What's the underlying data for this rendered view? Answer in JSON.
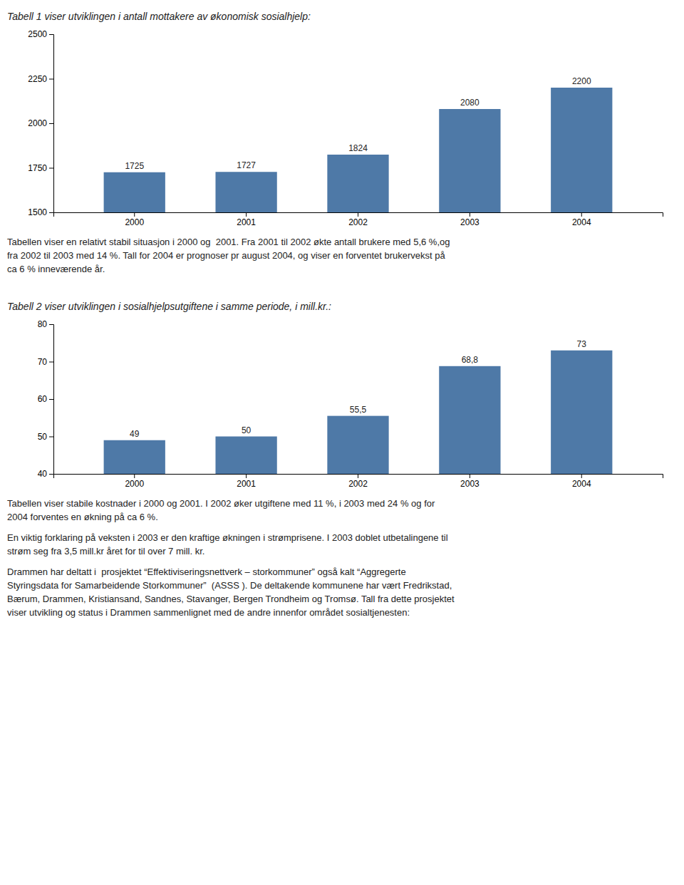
{
  "chart_data": [
    {
      "type": "bar",
      "title": "Tabell 1 viser utviklingen i antall mottakere av økonomisk sosialhjelp:",
      "categories": [
        "2000",
        "2001",
        "2002",
        "2003",
        "2004"
      ],
      "values": [
        1725,
        1727,
        1824,
        2080,
        2200
      ],
      "ylim": [
        1500,
        2500
      ],
      "yticks": [
        1500,
        1750,
        2000,
        2250,
        2500
      ],
      "grid": false,
      "data_labels": true,
      "annotations": [
        "Tabellen viser en relativt stabil situasjon i 2000 og  2001. Fra 2001 til 2002 økte antall brukere med 5,6 %,og\nfra 2002 til 2003 med 14 %. Tall for 2004 er prognoser pr august 2004, og viser en forventet brukervekst på\nca 6 % inneværende år."
      ]
    },
    {
      "type": "bar",
      "title": "Tabell 2 viser utviklingen i sosialhjelpsutgiftene i samme periode, i mill.kr.:",
      "categories": [
        "2000",
        "2001",
        "2002",
        "2003",
        "2004"
      ],
      "values": [
        49,
        50,
        55.5,
        68.8,
        73
      ],
      "value_labels": [
        "49",
        "50",
        "55,5",
        "68,8",
        "73"
      ],
      "ylim": [
        40,
        80
      ],
      "yticks": [
        40,
        50,
        60,
        70,
        80
      ],
      "grid": false,
      "data_labels": true,
      "annotations": [
        "Tabellen viser stabile kostnader i 2000 og 2001. I 2002 øker utgiftene med 11 %, i 2003 med 24 % og for\n2004 forventes en økning på ca 6 %.",
        "En viktig forklaring på veksten i 2003 er den kraftige økningen i strømprisene. I 2003 doblet utbetalingene til\nstrøm seg fra 3,5 mill.kr året for til over 7 mill. kr.",
        "Drammen har deltatt i  prosjektet “Effektiviseringsnettverk – storkommuner” også kalt “Aggregerte\nStyringsdata for Samarbeidende Storkommuner”  (ASSS ). De deltakende kommunene har vært Fredrikstad,\nBærum, Drammen, Kristiansand, Sandnes, Stavanger, Bergen Trondheim og Tromsø. Tall fra dette prosjektet\nviser utvikling og status i Drammen sammenlignet med de andre innenfor området sosialtjenesten:"
      ]
    }
  ]
}
